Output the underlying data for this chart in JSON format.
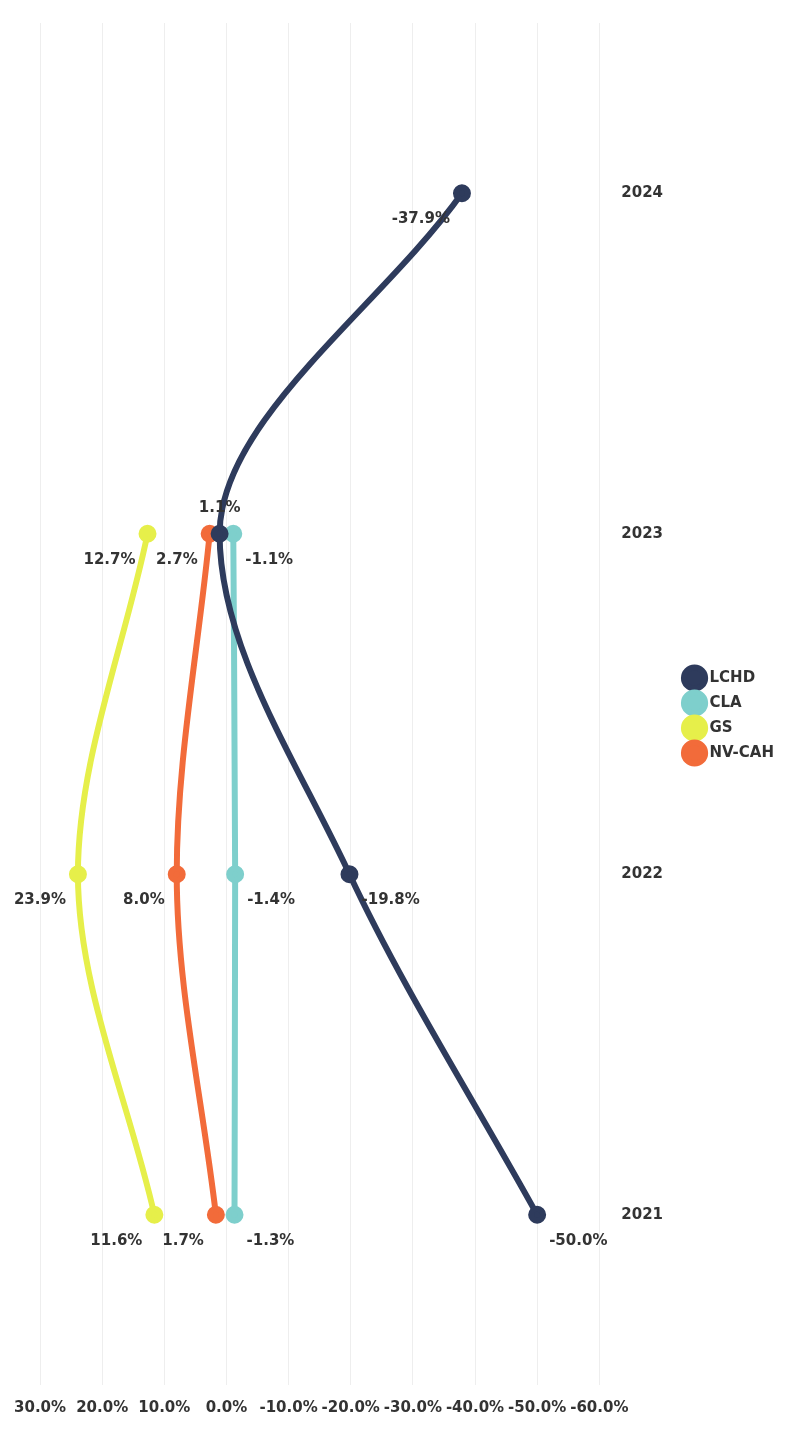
{
  "chart_data": {
    "type": "line",
    "orientation": "horizontal",
    "categories": [
      "2024",
      "2023",
      "2022",
      "2021"
    ],
    "series": [
      {
        "name": "LCHD",
        "color": "#2e3b5c",
        "values": [
          -37.9,
          1.1,
          -19.8,
          -50.0
        ],
        "value_labels": [
          "-37.9%",
          "1.1%",
          "-19.8%",
          "-50.0%"
        ]
      },
      {
        "name": "CLA",
        "color": "#7ecfcc",
        "values": [
          null,
          -1.1,
          -1.4,
          -1.3
        ],
        "value_labels": [
          null,
          "-1.1%",
          "-1.4%",
          "-1.3%"
        ]
      },
      {
        "name": "GS",
        "color": "#e6ef4a",
        "values": [
          null,
          12.7,
          23.9,
          11.6
        ],
        "value_labels": [
          null,
          "12.7%",
          "23.9%",
          "11.6%"
        ]
      },
      {
        "name": "NV-CAH",
        "color": "#f26b3a",
        "values": [
          null,
          2.7,
          8.0,
          1.7
        ],
        "value_labels": [
          null,
          "2.7%",
          "8.0%",
          "1.7%"
        ]
      }
    ],
    "xlim": [
      30,
      -60
    ],
    "xticks": [
      {
        "value": 30,
        "label": "30.0%"
      },
      {
        "value": 20,
        "label": "20.0%"
      },
      {
        "value": 10,
        "label": "10.0%"
      },
      {
        "value": 0,
        "label": "0.0%"
      },
      {
        "value": -10,
        "label": "-10.0%"
      },
      {
        "value": -20,
        "label": "-20.0%"
      },
      {
        "value": -30,
        "label": "-30.0%"
      },
      {
        "value": -40,
        "label": "-40.0%"
      },
      {
        "value": -50,
        "label": "-50.0%"
      },
      {
        "value": -60,
        "label": "-60.0%"
      }
    ],
    "grid": "x",
    "legend": "right",
    "marker": "circle",
    "line_style": "solid"
  }
}
